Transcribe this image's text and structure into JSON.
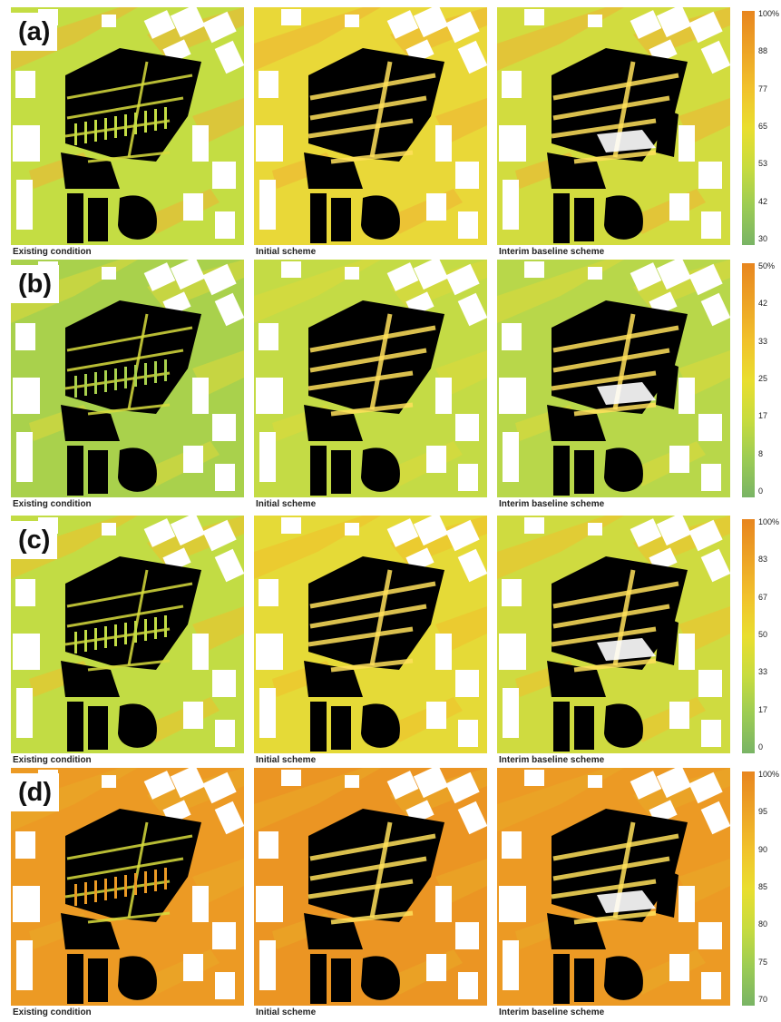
{
  "rows": [
    {
      "tag": "(a)",
      "captions": [
        "Existing condition",
        "Initial scheme",
        "Interim baseline scheme"
      ],
      "legend_ticks": [
        "100%",
        "88",
        "77",
        "65",
        "53",
        "42",
        "30"
      ],
      "legend_colors": [
        "#e8861f",
        "#eda326",
        "#f1c22c",
        "#e9de2f",
        "#c8dc3e",
        "#9ccc54",
        "#79b465"
      ],
      "panel_fill": [
        "#c4dd43",
        "#e9d838",
        "#d2dc3f"
      ],
      "panel_hot": "#efb333"
    },
    {
      "tag": "(b)",
      "captions": [
        "Existing condition",
        "Initial scheme",
        "Interim baseline scheme"
      ],
      "legend_ticks": [
        "50%",
        "42",
        "33",
        "25",
        "17",
        "8",
        "0"
      ],
      "legend_colors": [
        "#e8861f",
        "#eda326",
        "#f1c22c",
        "#e9de2f",
        "#c8dc3e",
        "#9ccc54",
        "#79b465"
      ],
      "panel_fill": [
        "#a9d14c",
        "#c4db45",
        "#b8d74a"
      ],
      "panel_hot": "#dfd93a"
    },
    {
      "tag": "(c)",
      "captions": [
        "Existing condition",
        "Initial scheme",
        "Interim baseline scheme"
      ],
      "legend_ticks": [
        "100%",
        "83",
        "67",
        "50",
        "33",
        "17",
        "0"
      ],
      "legend_colors": [
        "#e8861f",
        "#eda326",
        "#f1c22c",
        "#e9de2f",
        "#c8dc3e",
        "#9ccc54",
        "#79b465"
      ],
      "panel_fill": [
        "#c2dc44",
        "#e5da37",
        "#cfdb40"
      ],
      "panel_hot": "#f0c02c"
    },
    {
      "tag": "(d)",
      "captions": [
        "Existing condition",
        "Initial scheme",
        "Interim baseline scheme"
      ],
      "legend_ticks": [
        "100%",
        "95",
        "90",
        "85",
        "80",
        "75",
        "70"
      ],
      "legend_colors": [
        "#e8861f",
        "#eda326",
        "#f1c22c",
        "#e9de2f",
        "#c8dc3e",
        "#9ccc54",
        "#79b465"
      ],
      "panel_fill": [
        "#ec9a24",
        "#eb9523",
        "#ec9a24"
      ],
      "panel_hot": "#e9ac28"
    }
  ]
}
